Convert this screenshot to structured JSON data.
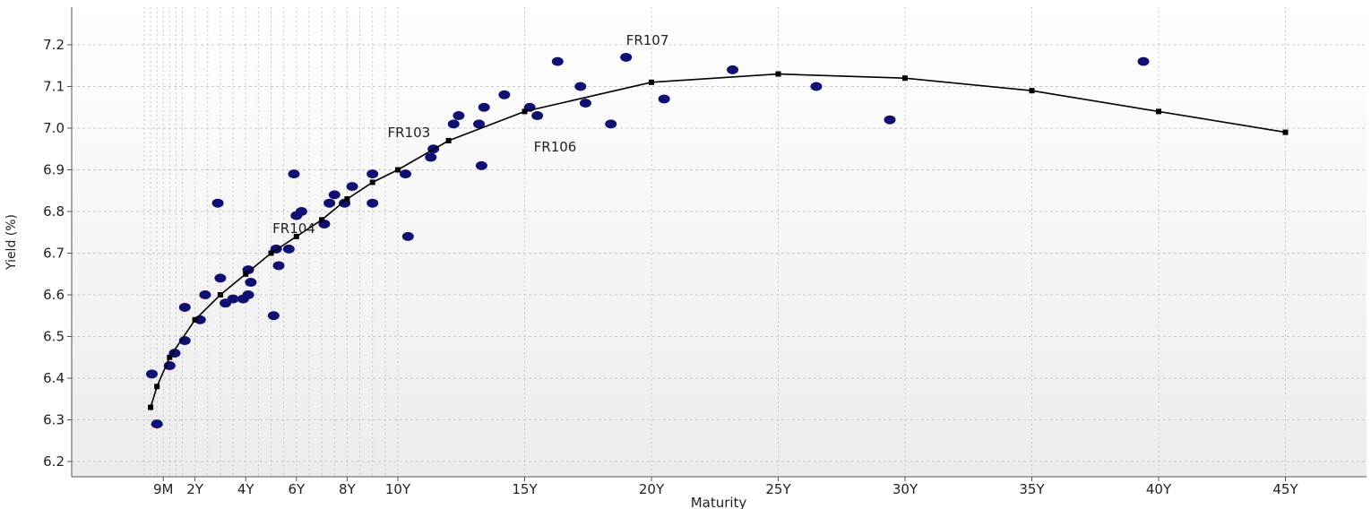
{
  "chart_data": {
    "type": "scatter",
    "title": "",
    "xlabel": "Maturity",
    "ylabel": "Yield (%)",
    "ylim": [
      6.18,
      7.28
    ],
    "xlim": [
      0,
      48
    ],
    "grid": true,
    "x_tick_values": [
      0.75,
      2,
      4,
      6,
      8,
      10,
      15,
      20,
      25,
      30,
      35,
      40,
      45
    ],
    "x_tick_labels": [
      "9M",
      "2Y",
      "4Y",
      "6Y",
      "8Y",
      "10Y",
      "15Y",
      "20Y",
      "25Y",
      "30Y",
      "35Y",
      "40Y",
      "45Y"
    ],
    "y_tick_values": [
      6.2,
      6.3,
      6.4,
      6.5,
      6.6,
      6.7,
      6.8,
      6.9,
      7.0,
      7.1,
      7.2
    ],
    "y_tick_labels": [
      "6.2",
      "6.3",
      "6.4",
      "6.5",
      "6.6",
      "6.7",
      "6.8",
      "6.9",
      "7.0",
      "7.1",
      "7.2"
    ],
    "minor_x_grid": [
      0.0,
      0.25,
      0.5,
      1.0,
      1.25,
      1.5,
      2.5,
      3,
      3.5,
      4.5,
      5,
      5.5,
      6.5,
      7,
      7.5,
      8.5,
      9,
      9.5
    ],
    "colors": {
      "bond_points": "#101070",
      "curve": "#000000",
      "grid": "#c8c8c8"
    },
    "series": [
      {
        "type": "scatter",
        "values": [
          [
            0.3,
            6.41
          ],
          [
            0.5,
            6.29
          ],
          [
            1.0,
            6.43
          ],
          [
            1.2,
            6.46
          ],
          [
            1.6,
            6.57
          ],
          [
            1.6,
            6.49
          ],
          [
            2.2,
            6.54
          ],
          [
            2.4,
            6.6
          ],
          [
            2.9,
            6.82
          ],
          [
            3.0,
            6.64
          ],
          [
            3.2,
            6.58
          ],
          [
            3.5,
            6.59
          ],
          [
            3.9,
            6.59
          ],
          [
            4.1,
            6.66
          ],
          [
            4.1,
            6.6
          ],
          [
            4.2,
            6.63
          ],
          [
            5.1,
            6.55
          ],
          [
            5.2,
            6.71
          ],
          [
            5.3,
            6.67
          ],
          [
            5.7,
            6.71
          ],
          [
            5.9,
            6.89
          ],
          [
            6.0,
            6.79
          ],
          [
            6.2,
            6.8
          ],
          [
            7.1,
            6.77
          ],
          [
            7.3,
            6.82
          ],
          [
            7.5,
            6.84
          ],
          [
            7.9,
            6.82
          ],
          [
            8.2,
            6.86
          ],
          [
            9.0,
            6.82
          ],
          [
            9.0,
            6.89
          ],
          [
            10.3,
            6.89
          ],
          [
            10.4,
            6.74
          ],
          [
            11.3,
            6.93
          ],
          [
            11.4,
            6.95
          ],
          [
            12.2,
            7.01
          ],
          [
            12.4,
            7.03
          ],
          [
            13.2,
            7.01
          ],
          [
            13.3,
            6.91
          ],
          [
            13.4,
            7.05
          ],
          [
            14.2,
            7.08
          ],
          [
            15.2,
            7.05
          ],
          [
            15.5,
            7.03
          ],
          [
            16.3,
            7.16
          ],
          [
            17.2,
            7.1
          ],
          [
            17.4,
            7.06
          ],
          [
            18.4,
            7.01
          ],
          [
            19.0,
            7.17
          ],
          [
            20.5,
            7.07
          ],
          [
            23.2,
            7.14
          ],
          [
            26.5,
            7.1
          ],
          [
            29.4,
            7.02
          ],
          [
            39.4,
            7.16
          ]
        ]
      },
      {
        "type": "line",
        "values": [
          [
            0.25,
            6.33
          ],
          [
            0.5,
            6.38
          ],
          [
            1.0,
            6.45
          ],
          [
            2.0,
            6.54
          ],
          [
            3.0,
            6.6
          ],
          [
            4.0,
            6.65
          ],
          [
            5.0,
            6.7
          ],
          [
            6.0,
            6.74
          ],
          [
            7.0,
            6.78
          ],
          [
            8.0,
            6.83
          ],
          [
            9.0,
            6.87
          ],
          [
            10.0,
            6.9
          ],
          [
            12.0,
            6.97
          ],
          [
            15.0,
            7.04
          ],
          [
            20.0,
            7.11
          ],
          [
            25.0,
            7.13
          ],
          [
            30.0,
            7.12
          ],
          [
            35.0,
            7.09
          ],
          [
            40.0,
            7.04
          ],
          [
            45.0,
            6.99
          ]
        ]
      }
    ],
    "annotations": [
      {
        "text": "FR107",
        "x": 19.0,
        "y": 7.17
      },
      {
        "text": "FR103",
        "x": 10.3,
        "y": 6.89
      },
      {
        "text": "FR106",
        "x": 15.5,
        "y": 7.03
      },
      {
        "text": "FR104",
        "x": 5.2,
        "y": 6.71
      }
    ]
  }
}
